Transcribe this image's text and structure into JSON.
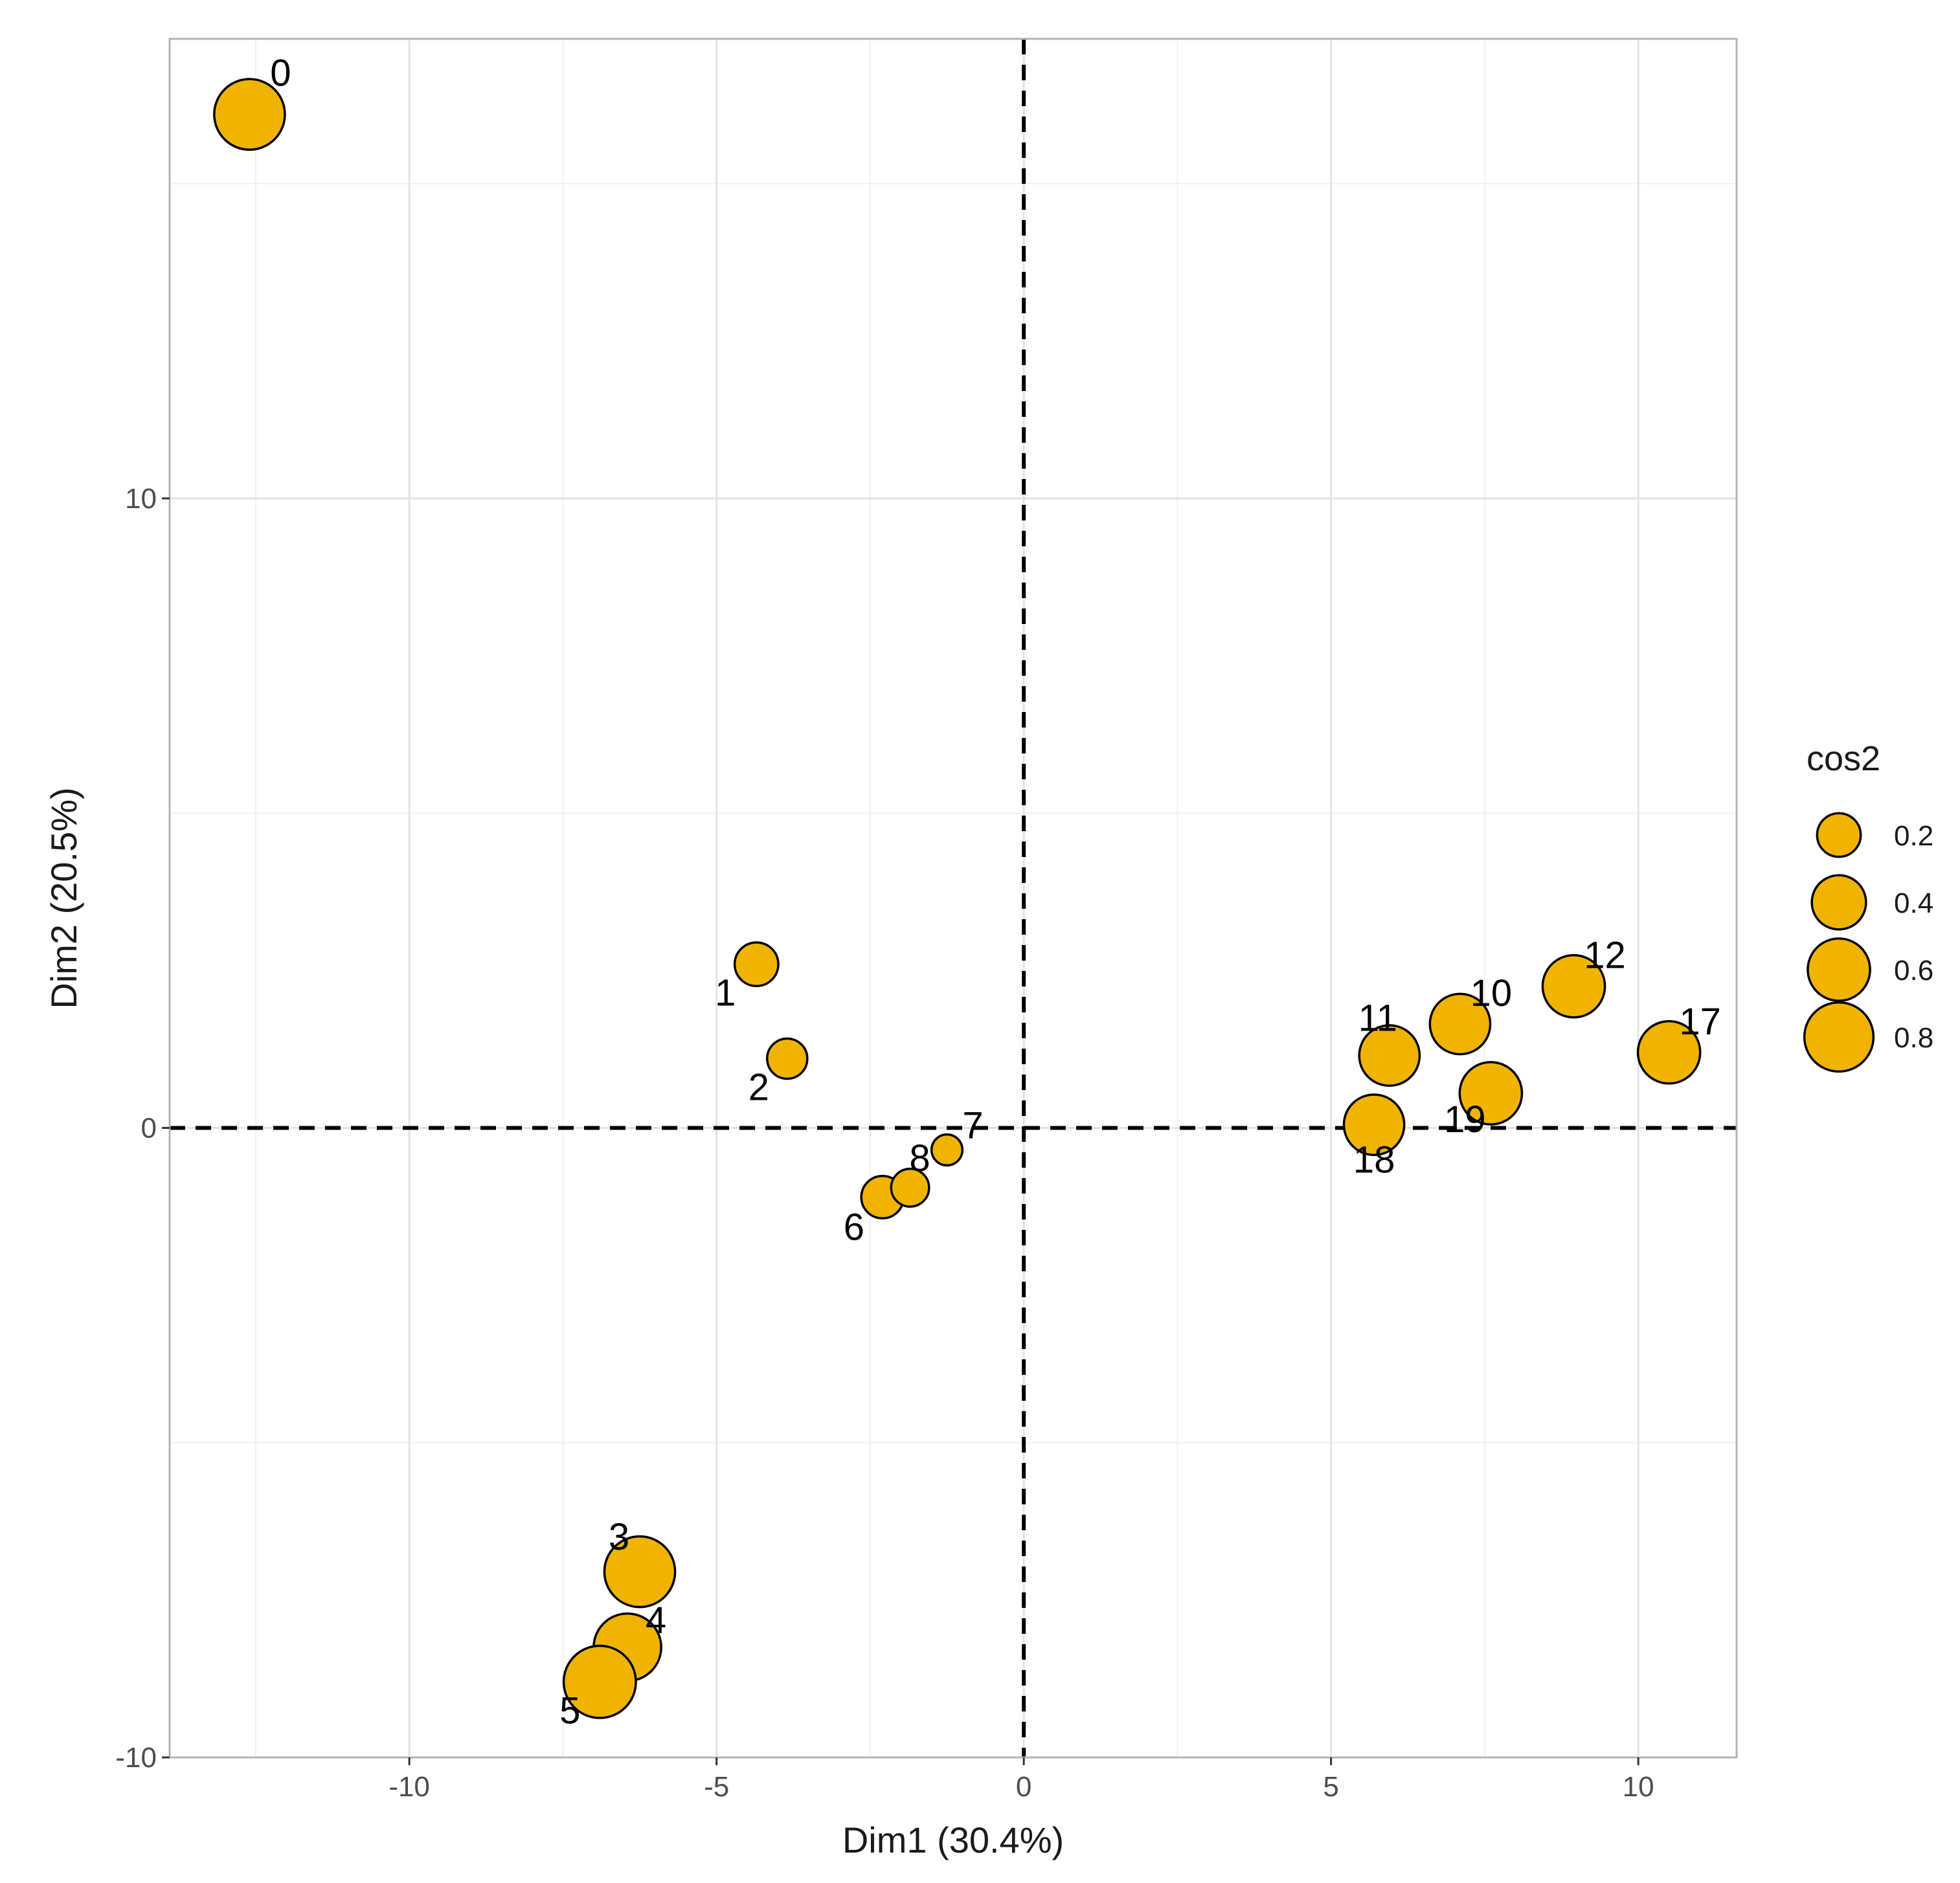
{
  "chart_data": {
    "type": "scatter",
    "title": "",
    "xlabel": "Dim1 (30.4%)",
    "ylabel": "Dim2 (20.5%)",
    "xlim": [
      -13.9,
      11.6
    ],
    "ylim": [
      -10.0,
      17.3
    ],
    "xticks": [
      -10,
      -5,
      0,
      5,
      10
    ],
    "yticks": [
      -10,
      0,
      10
    ],
    "grid": true,
    "reference_lines": {
      "x": 0,
      "y": 0,
      "style": "dashed"
    },
    "point_fill": "#F0B400",
    "point_stroke": "#000000",
    "size_variable": "cos2",
    "points": [
      {
        "label": "0",
        "x": -12.6,
        "y": 16.1,
        "cos2": 0.85
      },
      {
        "label": "1",
        "x": -4.35,
        "y": 2.6,
        "cos2": 0.2
      },
      {
        "label": "2",
        "x": -3.85,
        "y": 1.1,
        "cos2": 0.15
      },
      {
        "label": "3",
        "x": -6.25,
        "y": -7.05,
        "cos2": 0.85
      },
      {
        "label": "4",
        "x": -6.45,
        "y": -8.25,
        "cos2": 0.75
      },
      {
        "label": "5",
        "x": -6.9,
        "y": -8.8,
        "cos2": 0.9
      },
      {
        "label": "6",
        "x": -2.3,
        "y": -1.1,
        "cos2": 0.18
      },
      {
        "label": "7",
        "x": -1.25,
        "y": -0.35,
        "cos2": 0.05
      },
      {
        "label": "8",
        "x": -1.85,
        "y": -0.95,
        "cos2": 0.12
      },
      {
        "label": "10",
        "x": 7.1,
        "y": 1.65,
        "cos2": 0.55
      },
      {
        "label": "11",
        "x": 5.95,
        "y": 1.15,
        "cos2": 0.55
      },
      {
        "label": "12",
        "x": 8.95,
        "y": 2.25,
        "cos2": 0.6
      },
      {
        "label": "17",
        "x": 10.5,
        "y": 1.2,
        "cos2": 0.6
      },
      {
        "label": "18",
        "x": 5.7,
        "y": 0.05,
        "cos2": 0.55
      },
      {
        "label": "19",
        "x": 7.6,
        "y": 0.55,
        "cos2": 0.6
      }
    ],
    "legend": {
      "title": "cos2",
      "position": "right",
      "entries": [
        {
          "label": "0.2",
          "cos2": 0.2
        },
        {
          "label": "0.4",
          "cos2": 0.4
        },
        {
          "label": "0.6",
          "cos2": 0.6
        },
        {
          "label": "0.8",
          "cos2": 0.8
        }
      ]
    }
  }
}
